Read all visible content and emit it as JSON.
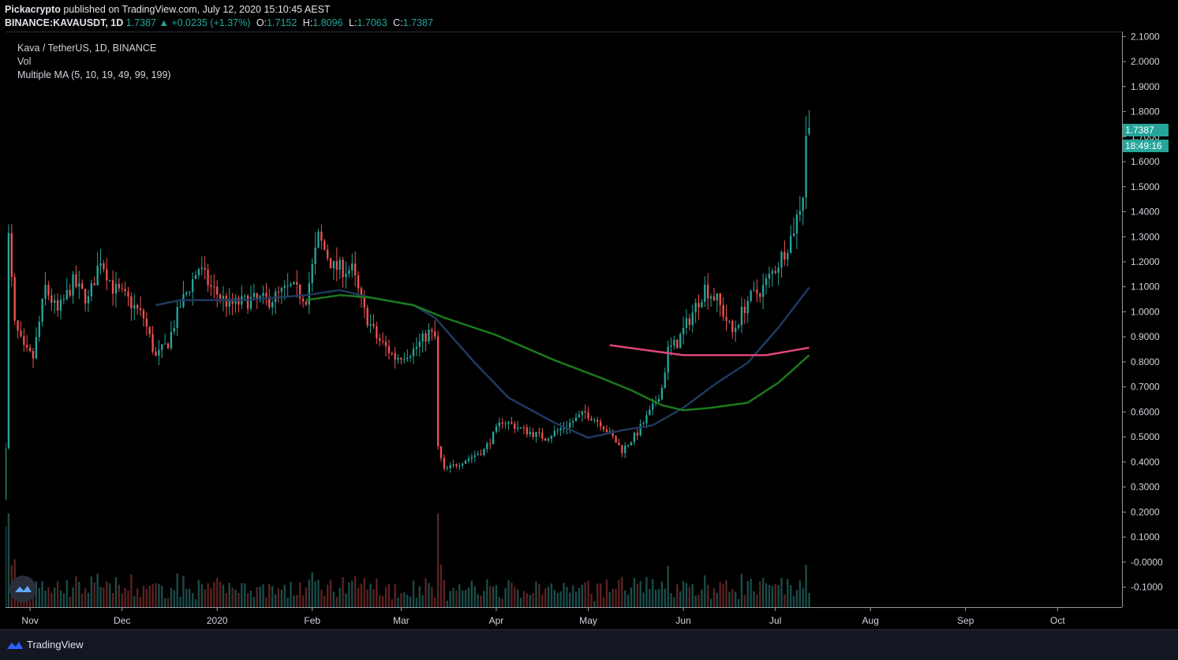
{
  "header": {
    "publisher": "Pickacrypto",
    "published_text": "published on TradingView.com, July 12, 2020 15:10:45 AEST",
    "symbol_line": "BINANCE:KAVAUSDT, 1D",
    "last": "1.7387",
    "change_arrow": "▲",
    "change": "+0.0235 (+1.37%)",
    "o_label": "O:",
    "o": "1.7152",
    "h_label": "H:",
    "h": "1.8096",
    "l_label": "L:",
    "l": "1.7063",
    "c_label": "C:",
    "c": "1.7387"
  },
  "legend": {
    "title": "Kava / TetherUS, 1D, BINANCE",
    "vol": "Vol",
    "ma": "Multiple MA (5, 10, 19, 49, 99, 199)"
  },
  "price_badge": "1.7387",
  "countdown_badge": "18:49:16",
  "footer": {
    "brand": "TradingView"
  },
  "colors": {
    "up": "#26a69a",
    "down": "#ef5350",
    "ma49": "#1f3a5f",
    "ma99": "#1b7a1b",
    "ma199": "#e0457b",
    "background": "#000000",
    "axis_text": "#d1d4dc"
  },
  "chart_data": {
    "type": "candlestick",
    "y_ticks": [
      "2.1000",
      "2.0000",
      "1.9000",
      "1.8000",
      "1.7000",
      "1.6000",
      "1.5000",
      "1.4000",
      "1.3000",
      "1.2000",
      "1.1000",
      "1.0000",
      "0.9000",
      "0.8000",
      "0.7000",
      "0.6000",
      "0.5000",
      "0.4000",
      "0.3000",
      "0.2000",
      "0.1000",
      "-0.0000",
      "-0.1000"
    ],
    "ylim": [
      -0.18,
      2.12
    ],
    "x_ticks": [
      "Nov",
      "Dec",
      "2020",
      "Feb",
      "Mar",
      "Apr",
      "May",
      "Jun",
      "Jul",
      "Aug",
      "Sep",
      "Oct"
    ],
    "x_tick_dates": [
      "2019-11-01",
      "2019-12-01",
      "2020-01-01",
      "2020-02-01",
      "2020-03-01",
      "2020-04-01",
      "2020-05-01",
      "2020-06-01",
      "2020-07-01",
      "2020-08-01",
      "2020-09-01",
      "2020-10-01"
    ],
    "xlim": [
      "2019-10-24",
      "2020-10-22"
    ],
    "anchors": [
      [
        "2019-10-24",
        0.46
      ],
      [
        "2019-10-25",
        1.3
      ],
      [
        "2019-10-27",
        0.95
      ],
      [
        "2019-10-30",
        0.85
      ],
      [
        "2019-11-02",
        0.82
      ],
      [
        "2019-11-06",
        1.1
      ],
      [
        "2019-11-10",
        1.0
      ],
      [
        "2019-11-15",
        1.12
      ],
      [
        "2019-11-20",
        1.05
      ],
      [
        "2019-11-24",
        1.22
      ],
      [
        "2019-11-28",
        1.1
      ],
      [
        "2019-12-03",
        1.05
      ],
      [
        "2019-12-08",
        0.98
      ],
      [
        "2019-12-12",
        0.82
      ],
      [
        "2019-12-16",
        0.88
      ],
      [
        "2019-12-20",
        1.03
      ],
      [
        "2019-12-26",
        1.18
      ],
      [
        "2019-12-30",
        1.1
      ],
      [
        "2020-01-05",
        1.03
      ],
      [
        "2020-01-12",
        1.05
      ],
      [
        "2020-01-18",
        1.05
      ],
      [
        "2020-01-25",
        1.1
      ],
      [
        "2020-01-30",
        1.06
      ],
      [
        "2020-02-03",
        1.3
      ],
      [
        "2020-02-08",
        1.18
      ],
      [
        "2020-02-14",
        1.17
      ],
      [
        "2020-02-18",
        1.0
      ],
      [
        "2020-02-22",
        0.9
      ],
      [
        "2020-02-28",
        0.82
      ],
      [
        "2020-03-05",
        0.85
      ],
      [
        "2020-03-10",
        0.92
      ],
      [
        "2020-03-12",
        0.9
      ],
      [
        "2020-03-13",
        0.46
      ],
      [
        "2020-03-15",
        0.37
      ],
      [
        "2020-03-20",
        0.4
      ],
      [
        "2020-03-28",
        0.45
      ],
      [
        "2020-04-03",
        0.57
      ],
      [
        "2020-04-10",
        0.53
      ],
      [
        "2020-04-17",
        0.5
      ],
      [
        "2020-04-24",
        0.55
      ],
      [
        "2020-04-30",
        0.6
      ],
      [
        "2020-05-05",
        0.56
      ],
      [
        "2020-05-09",
        0.5
      ],
      [
        "2020-05-12",
        0.45
      ],
      [
        "2020-05-17",
        0.52
      ],
      [
        "2020-05-22",
        0.62
      ],
      [
        "2020-05-25",
        0.7
      ],
      [
        "2020-05-27",
        0.85
      ],
      [
        "2020-05-30",
        0.88
      ],
      [
        "2020-06-04",
        1.0
      ],
      [
        "2020-06-08",
        1.1
      ],
      [
        "2020-06-12",
        1.05
      ],
      [
        "2020-06-17",
        0.92
      ],
      [
        "2020-06-22",
        1.05
      ],
      [
        "2020-06-27",
        1.1
      ],
      [
        "2020-07-02",
        1.2
      ],
      [
        "2020-07-06",
        1.3
      ],
      [
        "2020-07-08",
        1.38
      ],
      [
        "2020-07-10",
        1.48
      ],
      [
        "2020-07-11",
        1.72
      ],
      [
        "2020-07-12",
        1.74
      ]
    ],
    "ma49": [
      [
        "2019-12-12",
        1.03
      ],
      [
        "2019-12-20",
        1.05
      ],
      [
        "2020-01-10",
        1.05
      ],
      [
        "2020-01-30",
        1.07
      ],
      [
        "2020-02-10",
        1.09
      ],
      [
        "2020-02-20",
        1.06
      ],
      [
        "2020-03-05",
        1.03
      ],
      [
        "2020-03-12",
        0.98
      ],
      [
        "2020-03-25",
        0.8
      ],
      [
        "2020-04-05",
        0.66
      ],
      [
        "2020-04-20",
        0.56
      ],
      [
        "2020-05-01",
        0.5
      ],
      [
        "2020-05-12",
        0.53
      ],
      [
        "2020-05-22",
        0.55
      ],
      [
        "2020-06-01",
        0.62
      ],
      [
        "2020-06-12",
        0.72
      ],
      [
        "2020-06-22",
        0.8
      ],
      [
        "2020-07-02",
        0.94
      ],
      [
        "2020-07-12",
        1.1
      ]
    ],
    "ma99": [
      [
        "2020-01-30",
        1.05
      ],
      [
        "2020-02-10",
        1.07
      ],
      [
        "2020-02-20",
        1.06
      ],
      [
        "2020-03-05",
        1.03
      ],
      [
        "2020-03-15",
        0.98
      ],
      [
        "2020-04-01",
        0.91
      ],
      [
        "2020-04-20",
        0.81
      ],
      [
        "2020-05-05",
        0.74
      ],
      [
        "2020-05-15",
        0.69
      ],
      [
        "2020-05-25",
        0.63
      ],
      [
        "2020-06-01",
        0.61
      ],
      [
        "2020-06-10",
        0.62
      ],
      [
        "2020-06-22",
        0.64
      ],
      [
        "2020-07-02",
        0.72
      ],
      [
        "2020-07-12",
        0.83
      ]
    ],
    "ma199": [
      [
        "2020-05-08",
        0.87
      ],
      [
        "2020-05-20",
        0.85
      ],
      [
        "2020-06-01",
        0.83
      ],
      [
        "2020-06-15",
        0.83
      ],
      [
        "2020-06-28",
        0.83
      ],
      [
        "2020-07-12",
        0.86
      ]
    ]
  }
}
